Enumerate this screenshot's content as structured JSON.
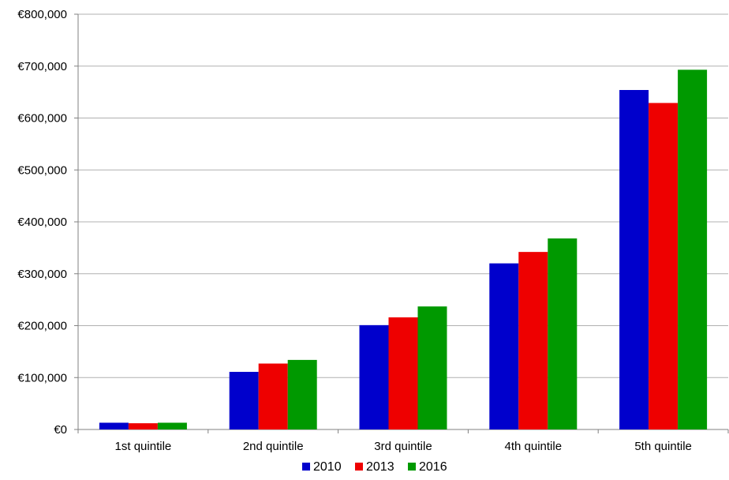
{
  "chart_data": {
    "type": "bar",
    "title": "",
    "xlabel": "",
    "ylabel": "",
    "categories": [
      "1st quintile",
      "2nd quintile",
      "3rd quintile",
      "4th quintile",
      "5th quintile"
    ],
    "series": [
      {
        "name": "2010",
        "color": "#0000CC",
        "values": [
          13000,
          111000,
          201000,
          320000,
          654000
        ]
      },
      {
        "name": "2013",
        "color": "#EE0000",
        "values": [
          12000,
          127000,
          216000,
          342000,
          629000
        ]
      },
      {
        "name": "2016",
        "color": "#009900",
        "values": [
          13000,
          134000,
          237000,
          368000,
          693000
        ]
      }
    ],
    "ylim": [
      0,
      800000
    ],
    "yticks": [
      0,
      100000,
      200000,
      300000,
      400000,
      500000,
      600000,
      700000,
      800000
    ],
    "ytick_labels": [
      "€0",
      "€100,000",
      "€200,000",
      "€300,000",
      "€400,000",
      "€500,000",
      "€600,000",
      "€700,000",
      "€800,000"
    ],
    "grid": true,
    "legend_position": "bottom"
  }
}
